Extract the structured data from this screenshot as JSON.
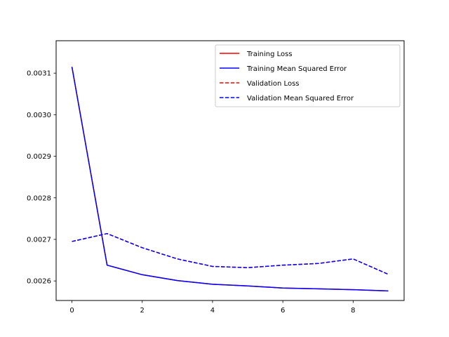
{
  "chart_data": {
    "type": "line",
    "title": "",
    "xlabel": "",
    "ylabel": "",
    "x": [
      0,
      1,
      2,
      3,
      4,
      5,
      6,
      7,
      8,
      9
    ],
    "xlim": [
      -0.45,
      9.45
    ],
    "ylim": [
      0.002553,
      0.003178
    ],
    "x_ticks": [
      0,
      2,
      4,
      6,
      8
    ],
    "x_tick_labels": [
      "0",
      "2",
      "4",
      "6",
      "8"
    ],
    "y_ticks": [
      0.0026,
      0.0027,
      0.0028,
      0.0029,
      0.003,
      0.0031
    ],
    "y_tick_labels": [
      "0.0026",
      "0.0027",
      "0.0028",
      "0.0029",
      "0.0030",
      "0.0031"
    ],
    "grid": false,
    "legend_position": "top-right",
    "series": [
      {
        "name": "Training Loss",
        "color": "#ff0000",
        "dash": "solid",
        "values": [
          0.003115,
          0.002638,
          0.002615,
          0.002601,
          0.002592,
          0.002588,
          0.002583,
          0.002581,
          0.002579,
          0.002576
        ]
      },
      {
        "name": "Training Mean Squared Error",
        "color": "#0000ff",
        "dash": "solid",
        "values": [
          0.003115,
          0.002638,
          0.002615,
          0.002601,
          0.002592,
          0.002588,
          0.002583,
          0.002581,
          0.002579,
          0.002576
        ]
      },
      {
        "name": "Validation Loss",
        "color": "#ff0000",
        "dash": "dashed",
        "values": [
          0.002695,
          0.002714,
          0.00268,
          0.002653,
          0.002635,
          0.002632,
          0.002638,
          0.002642,
          0.002653,
          0.002616
        ]
      },
      {
        "name": "Validation Mean Squared Error",
        "color": "#0000ff",
        "dash": "dashed",
        "values": [
          0.002695,
          0.002714,
          0.00268,
          0.002653,
          0.002635,
          0.002632,
          0.002638,
          0.002642,
          0.002653,
          0.002616
        ]
      }
    ]
  }
}
